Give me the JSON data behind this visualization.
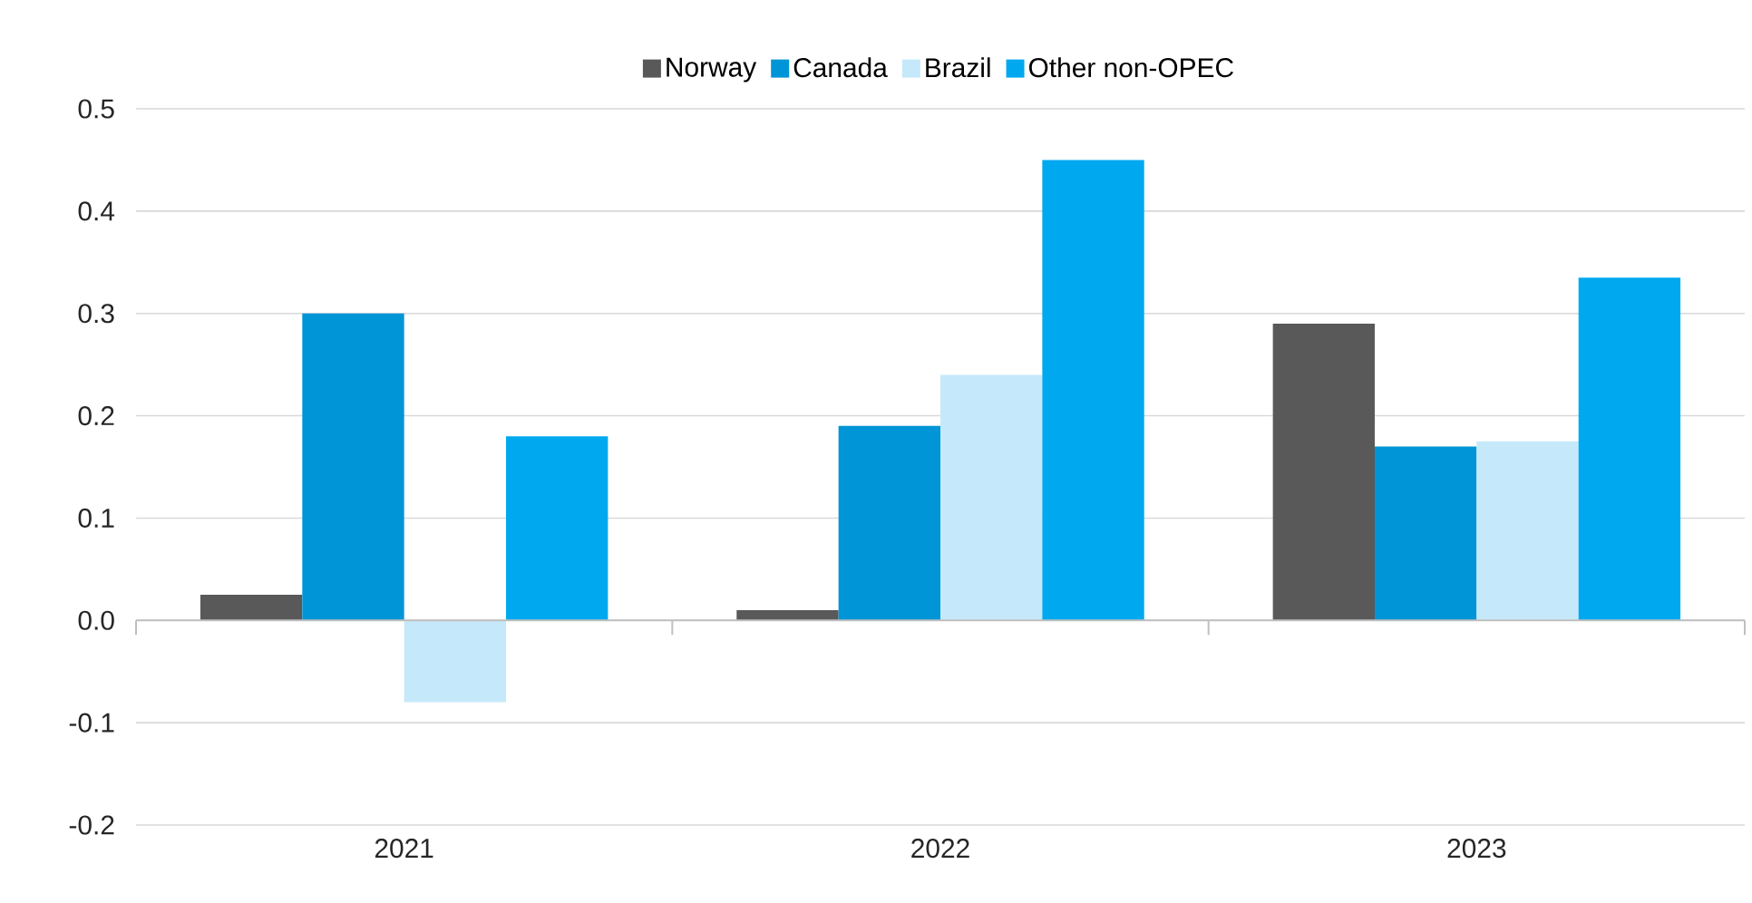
{
  "chart_data": {
    "type": "bar",
    "categories": [
      "2021",
      "2022",
      "2023"
    ],
    "series": [
      {
        "name": "Norway",
        "color": "#595959",
        "values": [
          0.025,
          0.01,
          0.29
        ]
      },
      {
        "name": "Canada",
        "color": "#0095d6",
        "values": [
          0.3,
          0.19,
          0.17
        ]
      },
      {
        "name": "Brazil",
        "color": "#c5e9fa",
        "values": [
          -0.08,
          0.24,
          0.175
        ]
      },
      {
        "name": "Other non-OPEC",
        "color": "#00a8f0",
        "values": [
          0.18,
          0.45,
          0.335
        ]
      }
    ],
    "ylim": [
      -0.2,
      0.5
    ],
    "yticks": [
      {
        "value": -0.2,
        "label": "-0.2"
      },
      {
        "value": -0.1,
        "label": "-0.1"
      },
      {
        "value": 0,
        "label": "0.0"
      },
      {
        "value": 0.1,
        "label": "0.1"
      },
      {
        "value": 0.2,
        "label": "0.2"
      },
      {
        "value": 0.3,
        "label": "0.3"
      },
      {
        "value": 0.4,
        "label": "0.4"
      },
      {
        "value": 0.5,
        "label": "0.5"
      }
    ],
    "grid": "y",
    "legend": "top"
  }
}
